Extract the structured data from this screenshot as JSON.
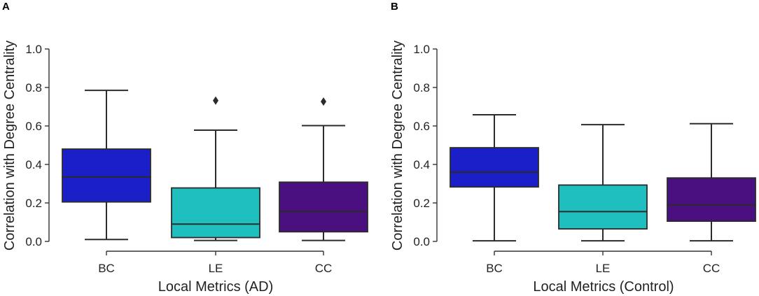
{
  "chart_data": [
    {
      "type": "box",
      "panel_label": "A",
      "xlabel": "Local Metrics (AD)",
      "ylabel": "Correlation with Degree Centrality",
      "ylim": [
        0.0,
        1.0
      ],
      "yticks": [
        "0.0",
        "0.2",
        "0.4",
        "0.6",
        "0.8",
        "1.0"
      ],
      "categories": [
        "BC",
        "LE",
        "CC"
      ],
      "colors": [
        "#1a1fc8",
        "#1fbfbf",
        "#4b1080"
      ],
      "boxes": [
        {
          "name": "BC",
          "min": 0.01,
          "q1": 0.205,
          "median": 0.335,
          "q3": 0.48,
          "max": 0.785,
          "outliers": []
        },
        {
          "name": "LE",
          "min": 0.005,
          "q1": 0.02,
          "median": 0.09,
          "q3": 0.278,
          "max": 0.578,
          "outliers": [
            0.732
          ]
        },
        {
          "name": "CC",
          "min": 0.005,
          "q1": 0.05,
          "median": 0.155,
          "q3": 0.308,
          "max": 0.602,
          "outliers": [
            0.727
          ]
        }
      ]
    },
    {
      "type": "box",
      "panel_label": "B",
      "xlabel": "Local Metrics (Control)",
      "ylabel": "Correlation with Degree Centrality",
      "ylim": [
        0.0,
        1.0
      ],
      "yticks": [
        "0.0",
        "0.2",
        "0.4",
        "0.6",
        "0.8",
        "1.0"
      ],
      "categories": [
        "BC",
        "LE",
        "CC"
      ],
      "colors": [
        "#1a1fc8",
        "#1fbfbf",
        "#4b1080"
      ],
      "boxes": [
        {
          "name": "BC",
          "min": 0.003,
          "q1": 0.283,
          "median": 0.36,
          "q3": 0.487,
          "max": 0.658,
          "outliers": []
        },
        {
          "name": "LE",
          "min": 0.003,
          "q1": 0.065,
          "median": 0.155,
          "q3": 0.293,
          "max": 0.607,
          "outliers": []
        },
        {
          "name": "CC",
          "min": 0.003,
          "q1": 0.105,
          "median": 0.19,
          "q3": 0.33,
          "max": 0.612,
          "outliers": []
        }
      ]
    }
  ]
}
